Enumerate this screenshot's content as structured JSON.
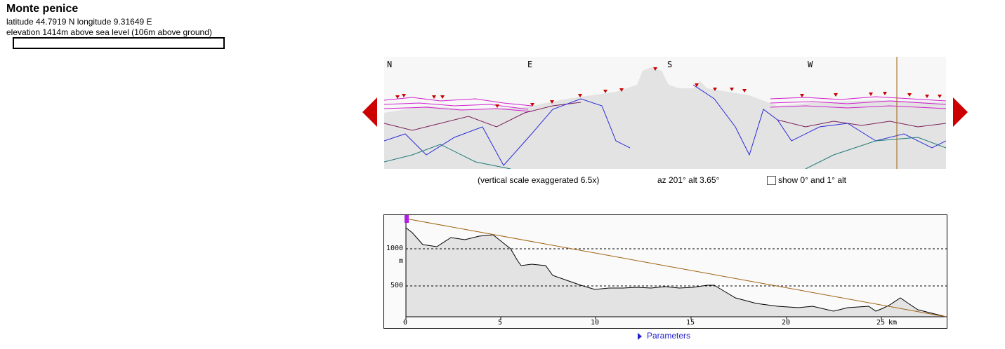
{
  "location": {
    "name": "Monte penice",
    "coords_text": "latitude 44.7919 N longitude 9.31649 E",
    "elevation_text": "elevation 1414m above sea level (106m above ground)"
  },
  "panorama": {
    "compass": {
      "n": "N",
      "e": "E",
      "s": "S",
      "w": "W"
    },
    "scale_note": "(vertical scale exaggerated 6.5x)",
    "azimuth_text": "az 201° alt 3.65°",
    "checkbox_label": "show 0° and 1° alt",
    "colors": {
      "near": "#2b2bd9",
      "mid": "#7a1f5c",
      "far": "#d21fcf",
      "peak": "#cc0000",
      "teal": "#1f7a7a",
      "sky": "#f7f7f7",
      "ground": "#e3e3e3",
      "cursor": "#a0620f"
    }
  },
  "profile": {
    "y_ticks": [
      "1000",
      "500"
    ],
    "y_unit": "m",
    "x_ticks": [
      "0",
      "5",
      "10",
      "15",
      "20",
      "25"
    ],
    "x_unit": "km",
    "line_color": "#a0620f"
  },
  "parameters_label": "Parameters"
}
